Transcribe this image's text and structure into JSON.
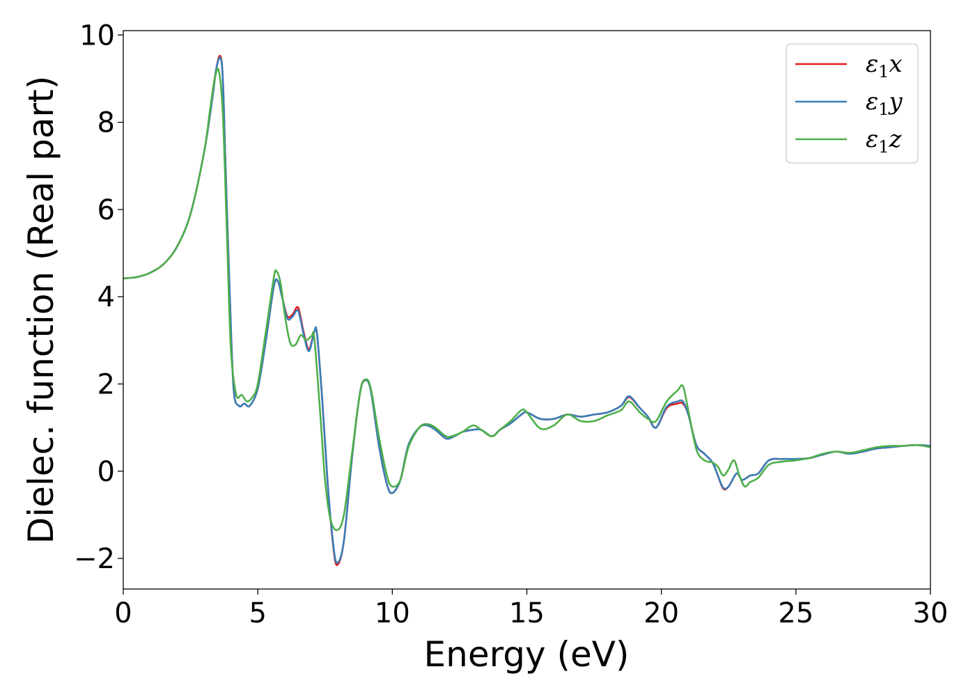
{
  "chart_data": {
    "type": "line",
    "xlabel": "Energy (eV)",
    "ylabel": "Dielec. function (Real part)",
    "xlim": [
      0,
      30
    ],
    "ylim": [
      -2.7,
      10.1
    ],
    "xticks": [
      0,
      5,
      10,
      15,
      20,
      25,
      30
    ],
    "yticks": [
      -2,
      0,
      2,
      4,
      6,
      8,
      10
    ],
    "ytick_labels": [
      "−2",
      "0",
      "2",
      "4",
      "6",
      "8",
      "10"
    ],
    "grid": false,
    "legend_position": "top-right",
    "series": [
      {
        "name": "ε₁x",
        "legend": {
          "base": "ε",
          "sub": "1",
          "suffix": "x"
        },
        "color": "#e41a1c",
        "x": [
          0,
          0.5,
          1,
          1.5,
          2,
          2.5,
          3,
          3.3,
          3.45,
          3.6,
          3.7,
          3.8,
          3.95,
          4.1,
          4.3,
          4.5,
          4.7,
          5.0,
          5.3,
          5.6,
          5.75,
          5.9,
          6.1,
          6.3,
          6.5,
          6.7,
          6.9,
          7.1,
          7.2,
          7.4,
          7.6,
          7.8,
          7.95,
          8.2,
          8.5,
          8.8,
          9.0,
          9.2,
          9.5,
          9.8,
          10.0,
          10.3,
          10.6,
          11.0,
          11.3,
          11.6,
          12.0,
          12.3,
          12.6,
          13.0,
          13.3,
          13.7,
          14.0,
          14.4,
          14.8,
          15.0,
          15.5,
          16.0,
          16.5,
          17.0,
          17.5,
          18.0,
          18.5,
          18.8,
          19.2,
          19.5,
          19.8,
          20.2,
          20.6,
          20.8,
          21.0,
          21.3,
          21.6,
          21.9,
          22.1,
          22.3,
          22.5,
          22.8,
          23.0,
          23.3,
          23.6,
          24.0,
          24.5,
          25.0,
          25.5,
          26.0,
          26.5,
          27.0,
          27.5,
          28.0,
          28.5,
          29.0,
          29.5,
          30.0
        ],
        "y": [
          4.42,
          4.45,
          4.55,
          4.75,
          5.15,
          5.9,
          7.3,
          8.5,
          9.2,
          9.52,
          9.0,
          7.0,
          4.2,
          1.9,
          1.5,
          1.55,
          1.5,
          1.9,
          3.0,
          4.25,
          4.35,
          4.0,
          3.55,
          3.6,
          3.75,
          3.2,
          2.8,
          3.2,
          3.15,
          1.6,
          -0.3,
          -1.7,
          -2.15,
          -1.6,
          0.3,
          1.8,
          2.1,
          1.85,
          0.6,
          -0.3,
          -0.5,
          -0.2,
          0.6,
          1.0,
          1.05,
          0.95,
          0.75,
          0.8,
          0.9,
          0.95,
          0.95,
          0.8,
          0.95,
          1.1,
          1.3,
          1.35,
          1.2,
          1.2,
          1.3,
          1.25,
          1.3,
          1.35,
          1.5,
          1.7,
          1.45,
          1.25,
          1.0,
          1.45,
          1.55,
          1.55,
          1.3,
          0.6,
          0.4,
          0.2,
          -0.1,
          -0.4,
          -0.35,
          -0.05,
          -0.2,
          -0.1,
          -0.05,
          0.25,
          0.28,
          0.28,
          0.3,
          0.38,
          0.45,
          0.4,
          0.45,
          0.52,
          0.55,
          0.58,
          0.6,
          0.58
        ]
      },
      {
        "name": "ε₁y",
        "legend": {
          "base": "ε",
          "sub": "1",
          "suffix": "y"
        },
        "color": "#377eb8",
        "x": [
          0,
          0.5,
          1,
          1.5,
          2,
          2.5,
          3,
          3.3,
          3.45,
          3.6,
          3.7,
          3.8,
          3.95,
          4.1,
          4.3,
          4.5,
          4.7,
          5.0,
          5.3,
          5.6,
          5.75,
          5.9,
          6.1,
          6.3,
          6.5,
          6.7,
          6.9,
          7.1,
          7.2,
          7.4,
          7.6,
          7.8,
          7.95,
          8.2,
          8.5,
          8.8,
          9.0,
          9.2,
          9.5,
          9.8,
          10.0,
          10.3,
          10.6,
          11.0,
          11.3,
          11.6,
          12.0,
          12.3,
          12.6,
          13.0,
          13.3,
          13.7,
          14.0,
          14.4,
          14.8,
          15.0,
          15.5,
          16.0,
          16.5,
          17.0,
          17.5,
          18.0,
          18.5,
          18.8,
          19.2,
          19.5,
          19.8,
          20.2,
          20.6,
          20.8,
          21.0,
          21.3,
          21.6,
          21.9,
          22.1,
          22.3,
          22.5,
          22.8,
          23.0,
          23.3,
          23.6,
          24.0,
          24.5,
          25.0,
          25.5,
          26.0,
          26.5,
          27.0,
          27.5,
          28.0,
          28.5,
          29.0,
          29.5,
          30.0
        ],
        "y": [
          4.42,
          4.45,
          4.55,
          4.75,
          5.15,
          5.9,
          7.3,
          8.5,
          9.2,
          9.48,
          9.0,
          7.0,
          4.2,
          1.9,
          1.5,
          1.55,
          1.5,
          1.9,
          3.0,
          4.25,
          4.35,
          4.0,
          3.5,
          3.55,
          3.68,
          3.15,
          2.75,
          3.2,
          3.15,
          1.6,
          -0.3,
          -1.65,
          -2.1,
          -1.6,
          0.3,
          1.8,
          2.08,
          1.85,
          0.6,
          -0.3,
          -0.5,
          -0.2,
          0.6,
          1.0,
          1.05,
          0.95,
          0.75,
          0.8,
          0.9,
          0.95,
          0.95,
          0.8,
          0.95,
          1.1,
          1.3,
          1.35,
          1.2,
          1.2,
          1.3,
          1.25,
          1.3,
          1.35,
          1.5,
          1.72,
          1.45,
          1.25,
          1.0,
          1.48,
          1.6,
          1.6,
          1.3,
          0.6,
          0.4,
          0.2,
          -0.1,
          -0.38,
          -0.35,
          -0.05,
          -0.2,
          -0.1,
          -0.05,
          0.25,
          0.28,
          0.28,
          0.3,
          0.38,
          0.45,
          0.4,
          0.45,
          0.52,
          0.55,
          0.58,
          0.6,
          0.58
        ]
      },
      {
        "name": "ε₁z",
        "legend": {
          "base": "ε",
          "sub": "1",
          "suffix": "z"
        },
        "color": "#4daf4a",
        "x": [
          0,
          0.5,
          1,
          1.5,
          2,
          2.5,
          3,
          3.25,
          3.4,
          3.55,
          3.7,
          3.85,
          4.0,
          4.2,
          4.4,
          4.6,
          4.8,
          5.0,
          5.3,
          5.6,
          5.7,
          5.85,
          6.0,
          6.2,
          6.4,
          6.6,
          6.8,
          7.0,
          7.1,
          7.3,
          7.5,
          7.7,
          7.95,
          8.2,
          8.5,
          8.8,
          9.0,
          9.2,
          9.5,
          9.8,
          10.0,
          10.3,
          10.6,
          11.0,
          11.3,
          11.6,
          12.0,
          12.3,
          12.6,
          13.0,
          13.3,
          13.7,
          14.0,
          14.4,
          14.8,
          15.0,
          15.5,
          16.0,
          16.5,
          17.0,
          17.5,
          18.0,
          18.5,
          18.8,
          19.2,
          19.5,
          19.8,
          20.2,
          20.6,
          20.8,
          21.0,
          21.3,
          21.6,
          21.9,
          22.1,
          22.3,
          22.5,
          22.7,
          22.9,
          23.1,
          23.3,
          23.6,
          24.0,
          24.5,
          25.0,
          25.5,
          26.0,
          26.5,
          27.0,
          27.5,
          28.0,
          28.5,
          29.0,
          29.5,
          30.0
        ],
        "y": [
          4.42,
          4.45,
          4.55,
          4.75,
          5.15,
          5.9,
          7.3,
          8.4,
          9.0,
          9.18,
          8.2,
          5.5,
          2.8,
          1.75,
          1.75,
          1.6,
          1.7,
          2.0,
          3.2,
          4.45,
          4.58,
          4.3,
          3.6,
          2.95,
          2.9,
          3.12,
          3.0,
          3.1,
          3.05,
          1.5,
          -0.2,
          -1.1,
          -1.35,
          -1.0,
          0.4,
          1.8,
          2.1,
          1.9,
          0.8,
          -0.1,
          -0.35,
          -0.2,
          0.55,
          1.0,
          1.08,
          1.0,
          0.8,
          0.82,
          0.9,
          1.05,
          0.95,
          0.8,
          0.95,
          1.15,
          1.4,
          1.35,
          0.98,
          1.05,
          1.3,
          1.15,
          1.15,
          1.28,
          1.4,
          1.6,
          1.35,
          1.2,
          1.15,
          1.6,
          1.85,
          1.95,
          1.4,
          0.5,
          0.25,
          0.2,
          0.1,
          -0.1,
          0.05,
          0.25,
          -0.1,
          -0.35,
          -0.25,
          -0.15,
          0.15,
          0.22,
          0.25,
          0.3,
          0.4,
          0.45,
          0.42,
          0.48,
          0.55,
          0.58,
          0.58,
          0.6,
          0.55
        ]
      }
    ]
  }
}
